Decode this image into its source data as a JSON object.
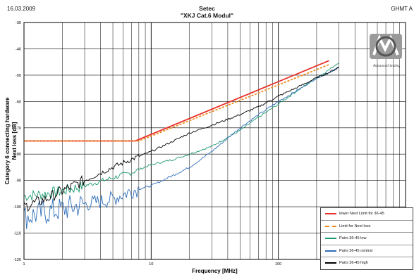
{
  "header": {
    "date": "16.03.2009",
    "title_line1": "Setec",
    "title_line2": "\"XKJ Cat.6 Modul\"",
    "company": "GHMT A"
  },
  "logo": {
    "text": "Advanced testing"
  },
  "chart_data": {
    "type": "line",
    "xlabel": "Frequency [MHz]",
    "ylabel_line1": "Category 6 connecting hardware",
    "ylabel_line2": "Next loss [dB]",
    "xscale": "log",
    "xlim": [
      1,
      1000
    ],
    "ylim": [
      -120,
      -30
    ],
    "x_ticks": [
      1,
      10,
      100,
      1000
    ],
    "y_ticks": [
      -30,
      -40,
      -50,
      -60,
      -70,
      -80,
      -90,
      -100,
      -110,
      -120
    ],
    "grid": true,
    "legend_position": "bottom-right",
    "series": [
      {
        "name": "lower Next Limit for 36-45",
        "color": "#e8312a",
        "style": "solid",
        "x": [
          1,
          7.5,
          250
        ],
        "y": [
          -75,
          -75,
          -44.5
        ]
      },
      {
        "name": "Limit for Next loss",
        "color": "#f08a1e",
        "style": "dashed",
        "x": [
          1,
          8,
          250
        ],
        "y": [
          -75,
          -75,
          -46
        ]
      },
      {
        "name": "Pairs 36-45 low",
        "color": "#1f9a6e",
        "style": "solid",
        "x": [
          1,
          1.5,
          2,
          3,
          5,
          7,
          10,
          15,
          20,
          30,
          50,
          70,
          100,
          150,
          200,
          250,
          300
        ],
        "y": [
          -96,
          -95,
          -94,
          -92,
          -89,
          -87,
          -84,
          -82,
          -80,
          -77,
          -71,
          -66,
          -61,
          -55,
          -51,
          -48,
          -45
        ]
      },
      {
        "name": "Pairs 36-45 central",
        "color": "#2e6db8",
        "style": "solid",
        "x": [
          1,
          1.5,
          2,
          3,
          4,
          5,
          7,
          10,
          15,
          20,
          30,
          50,
          70,
          100,
          150,
          200,
          250,
          300
        ],
        "y": [
          -104,
          -102,
          -101,
          -99,
          -98,
          -97,
          -94,
          -92,
          -88,
          -85,
          -79,
          -70,
          -65,
          -60,
          -55,
          -51,
          -49,
          -47
        ]
      },
      {
        "name": "Pairs 36-45 high",
        "color": "#000000",
        "style": "solid",
        "x": [
          1,
          1.5,
          2,
          3,
          5,
          7,
          10,
          15,
          20,
          30,
          50,
          70,
          100,
          150,
          200,
          250,
          300
        ],
        "y": [
          -100,
          -97,
          -94,
          -90,
          -85,
          -82,
          -79,
          -75,
          -72,
          -69,
          -65,
          -62,
          -58,
          -54,
          -51,
          -49,
          -47
        ]
      }
    ]
  }
}
